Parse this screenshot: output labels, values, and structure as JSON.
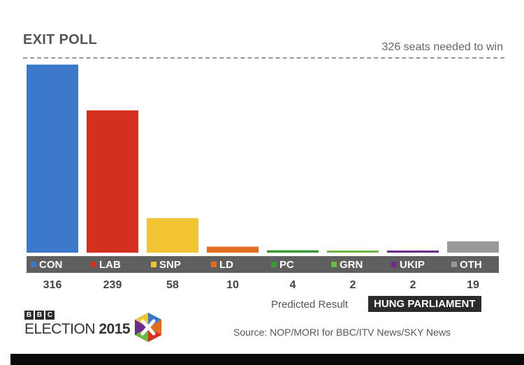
{
  "header": {
    "title": "EXIT POLL",
    "threshold_text": "326 seats needed to win"
  },
  "chart_data": {
    "type": "bar",
    "categories": [
      "CON",
      "LAB",
      "SNP",
      "LD",
      "PC",
      "GRN",
      "UKIP",
      "OTH"
    ],
    "values": [
      316,
      239,
      58,
      10,
      4,
      2,
      2,
      19
    ],
    "colors": [
      "#3b78c9",
      "#d5301f",
      "#f0c531",
      "#e46e1f",
      "#3c9a34",
      "#69b93e",
      "#6a2d8e",
      "#999999"
    ],
    "threshold": 326,
    "ylim": [
      0,
      326
    ],
    "title": "EXIT POLL"
  },
  "footer": {
    "predicted_label": "Predicted Result",
    "result": "HUNG PARLIAMENT",
    "source": "Source: NOP/MORI for BBC/ITV News/SKY News",
    "logo_letters": [
      "B",
      "B",
      "C"
    ],
    "logo_text_a": "ELECTION",
    "logo_text_b": "2015"
  }
}
